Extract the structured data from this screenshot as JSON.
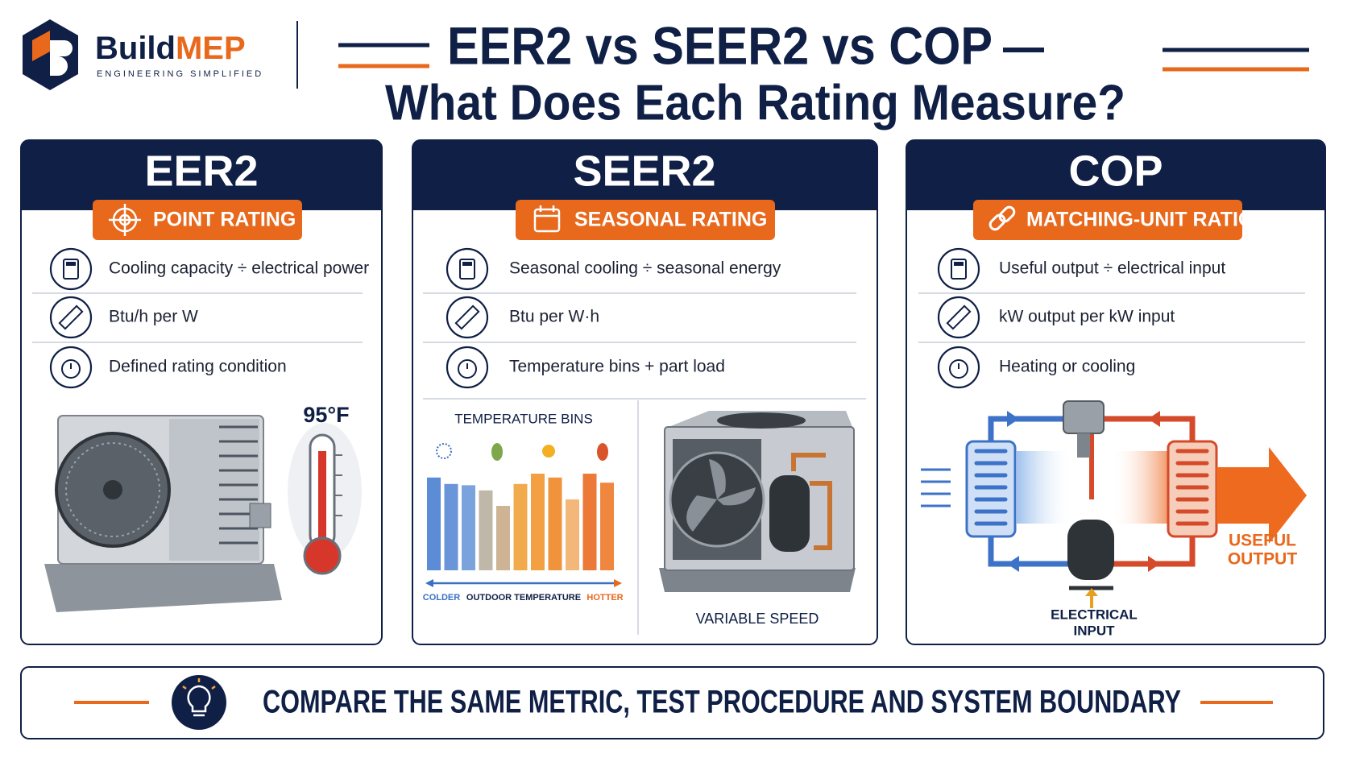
{
  "brand": {
    "name": [
      "Build",
      "MEP"
    ],
    "tagline": "ENGINEERING SIMPLIFIED"
  },
  "header": {
    "title": "EER2 vs SEER2 vs COP",
    "subtitle": "What Does Each Rating Measure?"
  },
  "cards": [
    {
      "title": "EER2",
      "badge": "POINT RATING",
      "items": [
        "Cooling capacity ÷ electrical power",
        "Btu/h per W",
        "Defined rating condition"
      ],
      "illustration": {
        "temperature": "95°F"
      }
    },
    {
      "title": "SEER2",
      "badge": "SEASONAL RATING",
      "items": [
        "Seasonal cooling ÷ seasonal energy",
        "Btu per W·h",
        "Temperature bins + part load"
      ],
      "illustration": {
        "chart_title": "TEMPERATURE BINS",
        "axis_left": "COLDER",
        "axis_label": "OUTDOOR TEMPERATURE",
        "axis_right": "HOTTER",
        "unit_label": "VARIABLE SPEED"
      }
    },
    {
      "title": "COP",
      "badge": "MATCHING-UNIT RATIO",
      "items": [
        "Useful output ÷ electrical input",
        "kW output per kW input",
        "Heating or cooling"
      ],
      "illustration": {
        "output_label": [
          "USEFUL",
          "OUTPUT"
        ],
        "input_label": [
          "ELECTRICAL",
          "INPUT"
        ]
      }
    }
  ],
  "footer": {
    "text": "COMPARE THE SAME METRIC, TEST PROCEDURE AND SYSTEM BOUNDARY"
  }
}
